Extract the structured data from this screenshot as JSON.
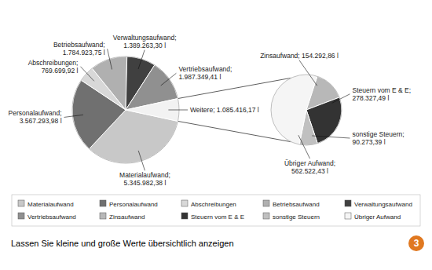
{
  "chart_data": [
    {
      "type": "pie",
      "subtitle": "Lassen Sie kleine und große Werte übersichtlich anzeigen",
      "categories": [
        "Materialaufwand",
        "Personalaufwand",
        "Abschreibungen",
        "Betriebsaufwand",
        "Verwaltungsaufwand",
        "Vertriebsaufwand",
        "Weitere"
      ],
      "values": [
        5345982.38,
        3567293.98,
        769699.92,
        1784923.75,
        1389263.3,
        1987349.41,
        1085416.17
      ],
      "value_labels": [
        "Materialaufwand;\n5.345.982,38 l",
        "Personalaufwand;\n3.567.293,98 l",
        "Abschreibungen;\n769.699,92 l",
        "Betriebsaufwand;\n1.784.923,75 l",
        "Verwaltungsaufwand;\n1.389.263,30 l",
        "Vertriebsaufwand;\n1.987.349,41 l",
        "Weitere; 1.085.416,17 l"
      ],
      "colors": [
        "#c8c8c8",
        "#707070",
        "#d8d8d8",
        "#b0b0b0",
        "#404040",
        "#909090",
        "#f2f2f2"
      ],
      "data_labels": true,
      "legend": "bottom",
      "annotations": [
        "3"
      ]
    },
    {
      "type": "pie",
      "categories": [
        "Zinsaufwand",
        "Steuern vom E & E",
        "sonstige Steuern",
        "Übriger Aufwand"
      ],
      "values": [
        154292.86,
        278327.49,
        90273.39,
        562522.43
      ],
      "value_labels": [
        "Zinsaufwand; 154.292,86 l",
        "Steuern vom E & E;\n278.327,49 l",
        "sonstige Steuern;\n90.273,39 l",
        "Übriger Aufwand;\n562.522,43 l"
      ],
      "colors": [
        "#b8b8b8",
        "#333333",
        "#c0c0c0",
        "#f5f5f5"
      ],
      "data_labels": true
    }
  ]
}
